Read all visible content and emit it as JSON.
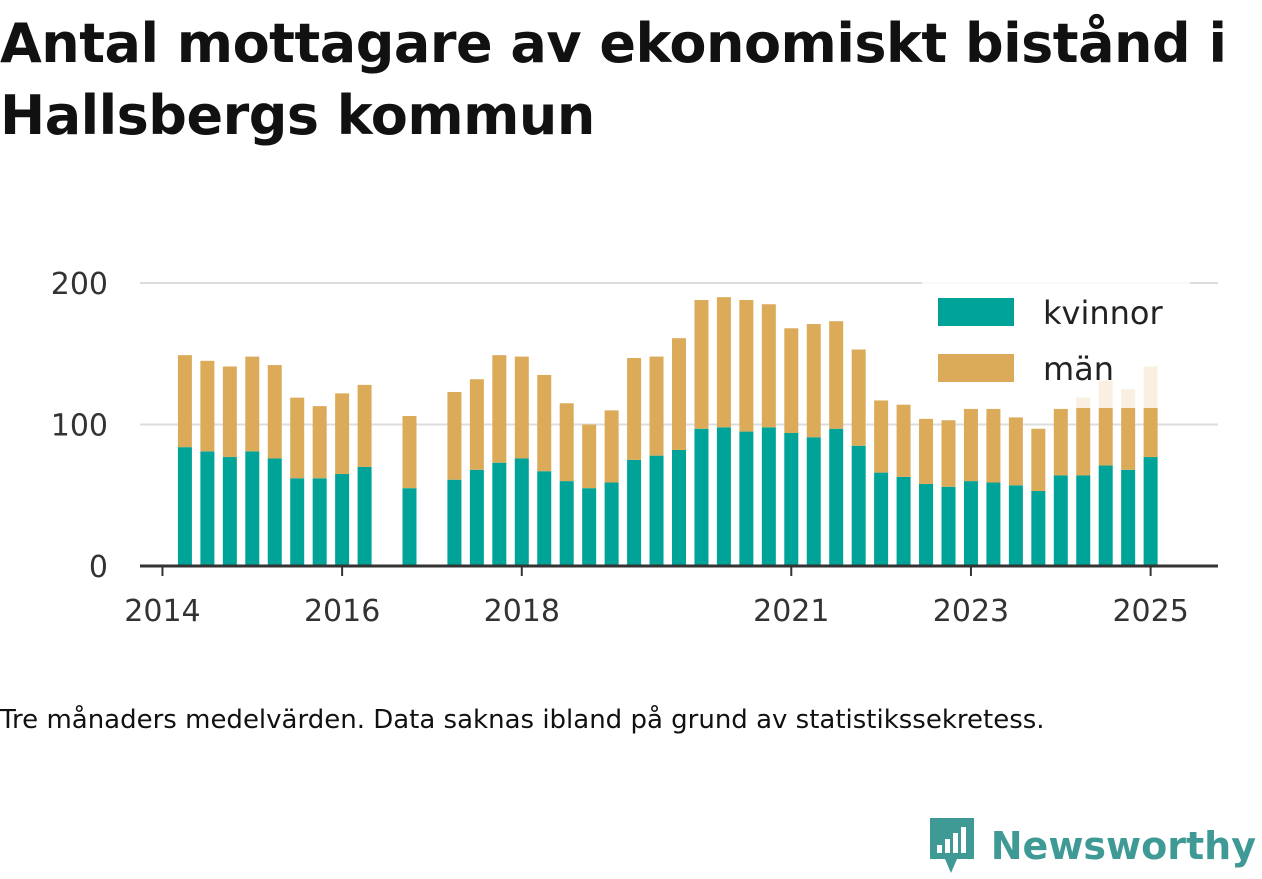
{
  "title": "Antal mottagare av ekonomiskt bistånd i Hallsbergs kommun",
  "note": "Tre månaders medelvärden. Data saknas ibland på grund av statistikssekretess.",
  "brand": {
    "name": "Newsworthy",
    "icon": "newsworthy-logo-icon",
    "color": "#3f9a96"
  },
  "chart_data": {
    "type": "bar",
    "stacked": true,
    "grid": true,
    "legend_position": "top-right",
    "ylim": [
      0,
      200
    ],
    "yticks": [
      0,
      100,
      200
    ],
    "xtick_labels": [
      "2014",
      "2016",
      "2018",
      "2021",
      "2023",
      "2025"
    ],
    "xlim": [
      2013.75,
      2025.75
    ],
    "x": [
      2014.25,
      2014.5,
      2014.75,
      2015.0,
      2015.25,
      2015.5,
      2015.75,
      2016.0,
      2016.25,
      2016.75,
      2017.25,
      2017.5,
      2017.75,
      2018.0,
      2018.25,
      2018.5,
      2018.75,
      2019.0,
      2019.25,
      2019.5,
      2019.75,
      2020.0,
      2020.25,
      2020.5,
      2020.75,
      2021.0,
      2021.25,
      2021.5,
      2021.75,
      2022.0,
      2022.25,
      2022.5,
      2022.75,
      2023.0,
      2023.25,
      2023.5,
      2023.75,
      2024.0,
      2024.25,
      2024.5,
      2024.75,
      2025.0
    ],
    "series": [
      {
        "name": "kvinnor",
        "color": "#00a398",
        "values": [
          84,
          81,
          77,
          81,
          76,
          62,
          62,
          65,
          70,
          55,
          61,
          68,
          73,
          76,
          67,
          60,
          55,
          59,
          75,
          78,
          82,
          97,
          98,
          95,
          98,
          94,
          91,
          97,
          85,
          66,
          63,
          58,
          56,
          60,
          59,
          57,
          53,
          64,
          64,
          71,
          68,
          77
        ]
      },
      {
        "name": "män",
        "color": "#dbab5a",
        "values": [
          65,
          64,
          64,
          67,
          66,
          57,
          51,
          57,
          58,
          51,
          62,
          64,
          76,
          72,
          68,
          55,
          45,
          51,
          72,
          70,
          79,
          91,
          92,
          93,
          87,
          74,
          80,
          76,
          68,
          51,
          51,
          46,
          47,
          51,
          52,
          48,
          44,
          47,
          55,
          60,
          57,
          64
        ]
      }
    ]
  }
}
